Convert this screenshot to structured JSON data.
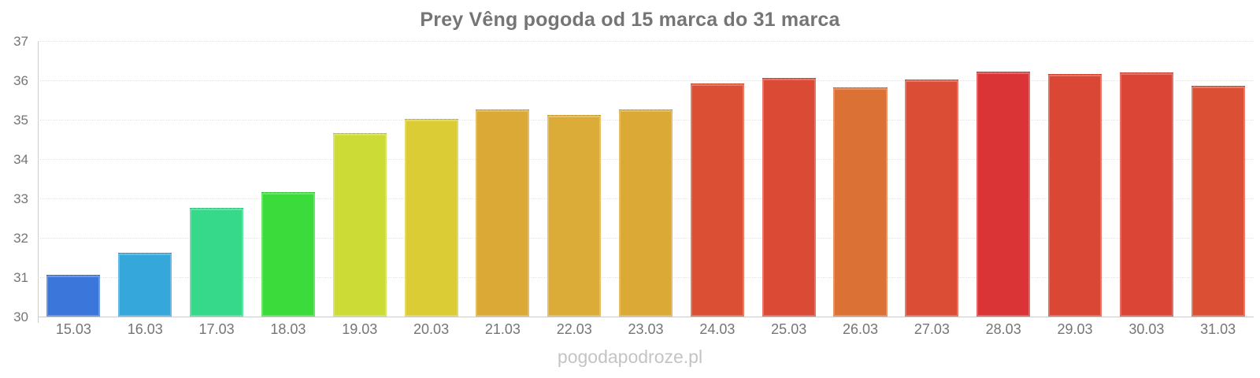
{
  "title": "Prey Vêng pogoda od 15 marca do 31 marca",
  "watermark": "pogodapodroze.pl",
  "colors": {
    "background": "#ffffff",
    "title_text": "#757575",
    "axis_text": "#757575",
    "gridline": "#e4e4e4",
    "axis_line": "#cccccc",
    "watermark_text": "#c4c4c4"
  },
  "chart_data": {
    "type": "bar",
    "title": "Prey Vêng pogoda od 15 marca do 31 marca",
    "xlabel": "",
    "ylabel": "",
    "ylim": [
      30,
      37
    ],
    "yticks": [
      30,
      31,
      32,
      33,
      34,
      35,
      36,
      37
    ],
    "grid": true,
    "legend": false,
    "categories": [
      "15.03",
      "16.03",
      "17.03",
      "18.03",
      "19.03",
      "20.03",
      "21.03",
      "22.03",
      "23.03",
      "24.03",
      "25.03",
      "26.03",
      "27.03",
      "28.03",
      "29.03",
      "30.03",
      "31.03"
    ],
    "values": [
      31.05,
      31.6,
      32.75,
      33.15,
      34.65,
      35.0,
      35.25,
      35.1,
      35.25,
      35.9,
      36.05,
      35.8,
      36.0,
      36.2,
      36.15,
      36.18,
      35.85
    ],
    "bar_colors": [
      "#3B76DB",
      "#36A7DB",
      "#35D989",
      "#3ADB3A",
      "#CCDB35",
      "#DBCB35",
      "#DBA935",
      "#DBAC38",
      "#DBA935",
      "#DB5035",
      "#DB4A35",
      "#DB7135",
      "#DB4E35",
      "#DB3437",
      "#DB4735",
      "#DB4535",
      "#DB5035"
    ]
  }
}
